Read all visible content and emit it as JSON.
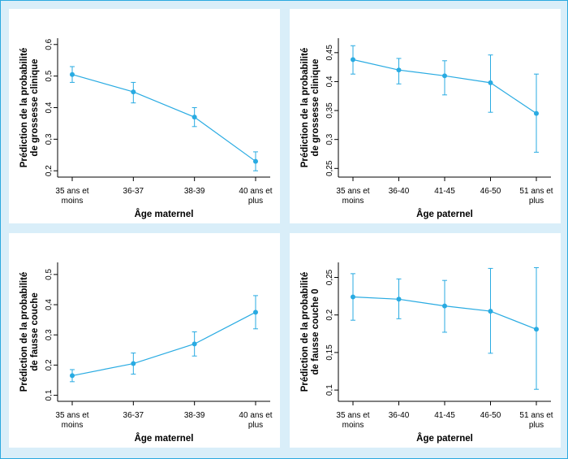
{
  "chart_data": [
    {
      "type": "line",
      "categories": [
        "35 ans et moins",
        "36-37",
        "38-39",
        "40 ans et plus"
      ],
      "tick_lines": [
        [
          "35 ans et",
          "moins"
        ],
        [
          "36-37"
        ],
        [
          "38-39"
        ],
        [
          "40 ans et",
          "plus"
        ]
      ],
      "ylabel_lines": [
        "Prédiction de la probabilité",
        "de grossesse clinique"
      ],
      "xlabel": "Âge maternel",
      "ylim": [
        0.18,
        0.62
      ],
      "yticks": [
        "0,2",
        "0,3",
        "0,4",
        "0,5",
        "0,6"
      ],
      "ytick_values": [
        0.2,
        0.3,
        0.4,
        0.5,
        0.6
      ],
      "series": [
        {
          "values": [
            0.505,
            0.45,
            0.37,
            0.23
          ],
          "lower": [
            0.48,
            0.415,
            0.34,
            0.2
          ],
          "upper": [
            0.53,
            0.48,
            0.4,
            0.26
          ]
        }
      ],
      "color": "#29abe2"
    },
    {
      "type": "line",
      "categories": [
        "35 ans et moins",
        "36-40",
        "41-45",
        "46-50",
        "51 ans et plus"
      ],
      "tick_lines": [
        [
          "35 ans et",
          "moins"
        ],
        [
          "36-40"
        ],
        [
          "41-45"
        ],
        [
          "46-50"
        ],
        [
          "51 ans et",
          "plus"
        ]
      ],
      "ylabel_lines": [
        "Prédiction de la probabilité",
        "de grossesse clinique"
      ],
      "xlabel": "Âge paternel",
      "ylim": [
        0.235,
        0.475
      ],
      "yticks": [
        "0,25",
        "0,3",
        "0,35",
        "0,4",
        "0,45"
      ],
      "ytick_values": [
        0.25,
        0.3,
        0.35,
        0.4,
        0.45
      ],
      "series": [
        {
          "values": [
            0.438,
            0.42,
            0.41,
            0.398,
            0.345
          ],
          "lower": [
            0.413,
            0.396,
            0.377,
            0.347,
            0.278
          ],
          "upper": [
            0.462,
            0.44,
            0.436,
            0.446,
            0.413
          ]
        }
      ],
      "color": "#29abe2"
    },
    {
      "type": "line",
      "categories": [
        "35 ans et moins",
        "36-37",
        "38-39",
        "40 ans et plus"
      ],
      "tick_lines": [
        [
          "35 ans et",
          "moins"
        ],
        [
          "36-37"
        ],
        [
          "38-39"
        ],
        [
          "40 ans et",
          "plus"
        ]
      ],
      "ylabel_lines": [
        "Prédiction de la probabilité",
        "de fausse couche"
      ],
      "xlabel": "Âge maternel",
      "ylim": [
        0.08,
        0.54
      ],
      "yticks": [
        "0,1",
        "0,2",
        "0,3",
        "0,4",
        "0,5"
      ],
      "ytick_values": [
        0.1,
        0.2,
        0.3,
        0.4,
        0.5
      ],
      "series": [
        {
          "values": [
            0.165,
            0.205,
            0.27,
            0.375
          ],
          "lower": [
            0.145,
            0.17,
            0.23,
            0.32
          ],
          "upper": [
            0.185,
            0.24,
            0.31,
            0.43
          ]
        }
      ],
      "color": "#29abe2"
    },
    {
      "type": "line",
      "categories": [
        "35 ans et moins",
        "36-40",
        "41-45",
        "46-50",
        "51 ans et plus"
      ],
      "tick_lines": [
        [
          "35 ans et",
          "moins"
        ],
        [
          "36-40"
        ],
        [
          "41-45"
        ],
        [
          "46-50"
        ],
        [
          "51 ans et",
          "plus"
        ]
      ],
      "ylabel_lines": [
        "Prédiction de la probabilité",
        "de fausse couche 0"
      ],
      "xlabel": "Âge paternel",
      "ylim": [
        0.085,
        0.27
      ],
      "yticks": [
        "0,1",
        "0,15",
        "0,2",
        "0,25"
      ],
      "ytick_values": [
        0.1,
        0.15,
        0.2,
        0.25
      ],
      "series": [
        {
          "values": [
            0.224,
            0.221,
            0.212,
            0.205,
            0.181
          ],
          "lower": [
            0.193,
            0.195,
            0.177,
            0.149,
            0.101
          ],
          "upper": [
            0.255,
            0.248,
            0.246,
            0.262,
            0.263
          ]
        }
      ],
      "color": "#29abe2"
    }
  ]
}
